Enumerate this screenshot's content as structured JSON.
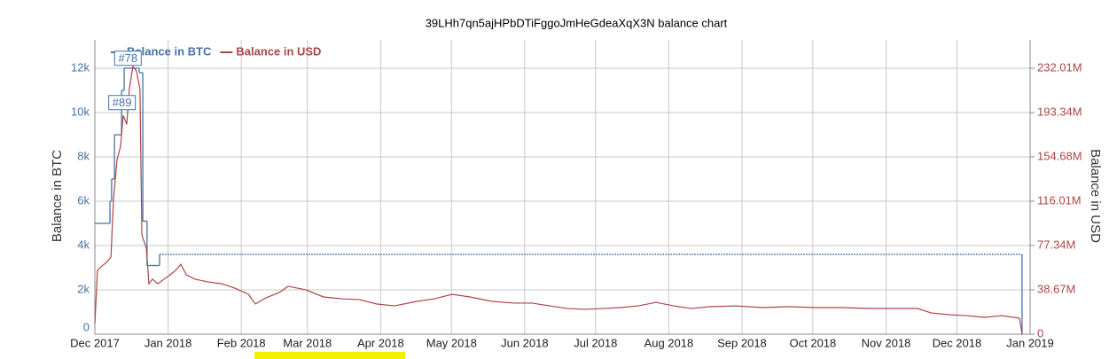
{
  "chart_data": {
    "type": "line",
    "title": "39LHh7qn5ajHPbDTiFggoJmHeGdeaXqX3N balance chart",
    "y_label": "Balance in BTC",
    "y2_label": "Balance in USD",
    "legend": "top-left",
    "grid": true,
    "xlim": [
      0,
      396
    ],
    "xticks": [
      {
        "value": 0,
        "label": "Dec 2017"
      },
      {
        "value": 31,
        "label": "Jan 2018"
      },
      {
        "value": 62,
        "label": "Feb 2018"
      },
      {
        "value": 90,
        "label": "Mar 2018"
      },
      {
        "value": 121,
        "label": "Apr 2018"
      },
      {
        "value": 151,
        "label": "May 2018"
      },
      {
        "value": 182,
        "label": "Jun 2018"
      },
      {
        "value": 212,
        "label": "Jul 2018"
      },
      {
        "value": 243,
        "label": "Aug 2018"
      },
      {
        "value": 274,
        "label": "Sep 2018"
      },
      {
        "value": 304,
        "label": "Oct 2018"
      },
      {
        "value": 335,
        "label": "Nov 2018"
      },
      {
        "value": 365,
        "label": "Dec 2018"
      },
      {
        "value": 396,
        "label": "Jan 2019"
      }
    ],
    "ylim": [
      0,
      13280
    ],
    "yticks": [
      0,
      {
        "value": 2000,
        "label": "2k"
      },
      {
        "value": 4000,
        "label": "4k"
      },
      {
        "value": 6000,
        "label": "6k"
      },
      {
        "value": 8000,
        "label": "8k"
      },
      {
        "value": 10000,
        "label": "10k"
      },
      {
        "value": 12000,
        "label": "12k"
      }
    ],
    "y2lim": [
      0,
      256770000
    ],
    "y2ticks": [
      0,
      {
        "value": 38670000,
        "label": "38.67M"
      },
      {
        "value": 77340000,
        "label": "77.34M"
      },
      {
        "value": 116010000,
        "label": "116.01M"
      },
      {
        "value": 154680000,
        "label": "154.68M"
      },
      {
        "value": 193340000,
        "label": "193.34M"
      },
      {
        "value": 232010000,
        "label": "232.01M"
      }
    ],
    "series": [
      {
        "name": "Balance in BTC",
        "color": "#4572a7",
        "step": true,
        "x": [
          0,
          6.4,
          7.1,
          8.3,
          11.3,
          12.4,
          18.8,
          20.3,
          22.1,
          27.4,
          392.6
        ],
        "values": [
          5000,
          6000,
          7000,
          9000,
          11000,
          12000,
          11800,
          5100,
          3100,
          3600,
          0
        ]
      },
      {
        "name": "Balance in USD",
        "color": "#aa4643",
        "axis": "y2",
        "x": [
          0,
          1.1,
          3,
          4.9,
          6.8,
          7.9,
          9.4,
          10.9,
          12,
          13.5,
          14.6,
          16.1,
          17.6,
          19.1,
          19.9,
          21.8,
          22.9,
          24.4,
          26.7,
          29.3,
          31.9,
          34.2,
          36.4,
          38.7,
          42.4,
          48,
          53.7,
          59.3,
          65,
          68,
          72.4,
          78,
          81.8,
          89.3,
          96.8,
          104.4,
          111.9,
          119.4,
          126.9,
          136.3,
          143.8,
          151.3,
          158.8,
          168.2,
          177.6,
          185.1,
          192.6,
          200.1,
          207.6,
          215.1,
          222.6,
          230.1,
          237.6,
          245.1,
          252.6,
          260.1,
          271.4,
          282.7,
          293.9,
          305.2,
          316.4,
          327.7,
          339,
          348.3,
          354,
          361.5,
          369,
          376.5,
          384,
          391.5,
          392.6
        ],
        "values": [
          9300000,
          55700000,
          59500000,
          62600000,
          67300000,
          117600000,
          152400000,
          164000000,
          191000000,
          183000000,
          214000000,
          233600000,
          229700000,
          214000000,
          86600000,
          75000000,
          44000000,
          48000000,
          44000000,
          48000000,
          51800000,
          55700000,
          61000000,
          51800000,
          48000000,
          45600000,
          44000000,
          40200000,
          34800000,
          26300000,
          31700000,
          36300000,
          41800000,
          38700000,
          32500000,
          30900000,
          30200000,
          26300000,
          24700000,
          28600000,
          30900000,
          34800000,
          32500000,
          28600000,
          27100000,
          27100000,
          24700000,
          22400000,
          21700000,
          22400000,
          23200000,
          24700000,
          27800000,
          24700000,
          22400000,
          24000000,
          24700000,
          23200000,
          24000000,
          23200000,
          23200000,
          22400000,
          22400000,
          22400000,
          18600000,
          17000000,
          16200000,
          14700000,
          16200000,
          13900000,
          0
        ]
      }
    ],
    "annotations": [
      {
        "label": "#78",
        "x": 14,
        "y": 12450
      },
      {
        "label": "#89",
        "x": 11.5,
        "y": 10450
      }
    ]
  }
}
